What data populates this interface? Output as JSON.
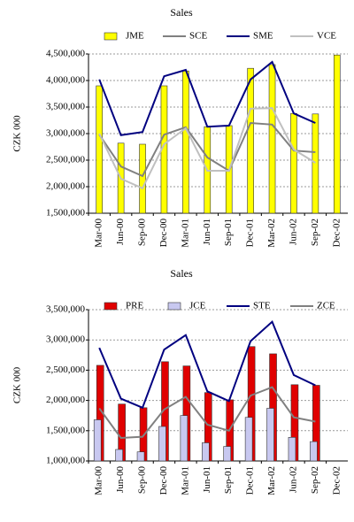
{
  "chart_data": [
    {
      "type": "combo",
      "title": "Sales",
      "y_label": "CZK 000",
      "categories": [
        "Mar-00",
        "Jun-00",
        "Sep-00",
        "Dec-00",
        "Mar-01",
        "Jun-01",
        "Sep-01",
        "Dec-01",
        "Mar-02",
        "Jun-02",
        "Sep-02",
        "Dec-02"
      ],
      "ylim": [
        1500000,
        4500000
      ],
      "yticks": [
        {
          "value": 1500000,
          "label": "1,500,000"
        },
        {
          "value": 2000000,
          "label": "2,000,000"
        },
        {
          "value": 2500000,
          "label": "2,500,000"
        },
        {
          "value": 3000000,
          "label": "3,000,000"
        },
        {
          "value": 3500000,
          "label": "3,500,000"
        },
        {
          "value": 4000000,
          "label": "4,000,000"
        },
        {
          "value": 4500000,
          "label": "4,500,000"
        }
      ],
      "grid": true,
      "series": [
        {
          "name": "JME",
          "type": "bar",
          "color": "#ffff00",
          "values": [
            3900000,
            2820000,
            2800000,
            3900000,
            4180000,
            3130000,
            3150000,
            4230000,
            4300000,
            3380000,
            3370000,
            4480000
          ]
        },
        {
          "name": "SCE",
          "type": "line",
          "color": "#808080",
          "values": [
            2980000,
            2380000,
            2200000,
            2980000,
            3120000,
            2550000,
            2300000,
            3200000,
            3170000,
            2680000,
            2650000,
            null
          ]
        },
        {
          "name": "SME",
          "type": "line",
          "color": "#000080",
          "values": [
            4020000,
            2970000,
            3030000,
            4080000,
            4200000,
            3130000,
            3150000,
            4020000,
            4350000,
            3380000,
            3200000,
            null
          ]
        },
        {
          "name": "VCE",
          "type": "line",
          "color": "#c0c0c0",
          "values": [
            3000000,
            2150000,
            1970000,
            2800000,
            3100000,
            2300000,
            2300000,
            3470000,
            3480000,
            2700000,
            2450000,
            null
          ]
        }
      ]
    },
    {
      "type": "combo",
      "title": "Sales",
      "y_label": "CZK 000",
      "categories": [
        "Mar-00",
        "Jun-00",
        "Sep-00",
        "Dec-00",
        "Mar-01",
        "Jun-01",
        "Sep-01",
        "Dec-01",
        "Mar-02",
        "Jun-02",
        "Sep-02",
        "Dec-02"
      ],
      "ylim": [
        1000000,
        3500000
      ],
      "yticks": [
        {
          "value": 1000000,
          "label": "1,000,000"
        },
        {
          "value": 1500000,
          "label": "1,500,000"
        },
        {
          "value": 2000000,
          "label": "2,000,000"
        },
        {
          "value": 2500000,
          "label": "2,500,000"
        },
        {
          "value": 3000000,
          "label": "3,000,000"
        },
        {
          "value": 3500000,
          "label": "3,500,000"
        }
      ],
      "grid": true,
      "series": [
        {
          "name": "PRE",
          "type": "bar",
          "color": "#e00000",
          "values": [
            2580000,
            1940000,
            1880000,
            2640000,
            2570000,
            2130000,
            2010000,
            2890000,
            2770000,
            2260000,
            2250000,
            null
          ]
        },
        {
          "name": "JCE",
          "type": "bar",
          "color": "#c8c8f0",
          "values": [
            1680000,
            1190000,
            1150000,
            1570000,
            1750000,
            1300000,
            1240000,
            1720000,
            1870000,
            1390000,
            1320000,
            null
          ]
        },
        {
          "name": "STE",
          "type": "line",
          "color": "#000080",
          "values": [
            2870000,
            2030000,
            1880000,
            2840000,
            3080000,
            2150000,
            1990000,
            2980000,
            3300000,
            2420000,
            2250000,
            null
          ]
        },
        {
          "name": "ZCE",
          "type": "line",
          "color": "#808080",
          "values": [
            1870000,
            1380000,
            1400000,
            1850000,
            2060000,
            1600000,
            1500000,
            2080000,
            2220000,
            1720000,
            1650000,
            null
          ]
        }
      ]
    }
  ]
}
